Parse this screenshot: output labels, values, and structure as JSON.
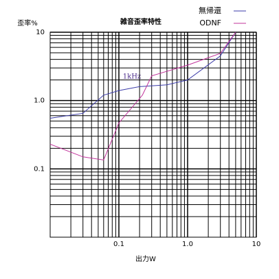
{
  "chart_data": {
    "type": "line",
    "title": "雑音歪率特性",
    "ylabel": "歪率%",
    "xlabel": "出力W",
    "annotation": "1kHz",
    "log_x": true,
    "log_y": true,
    "grid": true,
    "legend": "top-right",
    "xlim": [
      0.01,
      10
    ],
    "ylim": [
      0.01,
      10
    ],
    "xticks": [
      0.1,
      {
        "value": 1,
        "label": "1.0"
      },
      10
    ],
    "yticks": [
      0.1,
      {
        "value": 1,
        "label": "1.0"
      },
      10
    ],
    "xgrid_minor": [
      0.02,
      0.03,
      0.04,
      0.05,
      0.06,
      0.07,
      0.08,
      0.09,
      0.2,
      0.3,
      0.4,
      0.5,
      0.6,
      0.7,
      0.8,
      0.9,
      2,
      3,
      4,
      5,
      6,
      7,
      8,
      9
    ],
    "ygrid_minor": [
      0.02,
      0.03,
      0.04,
      0.05,
      0.06,
      0.07,
      0.08,
      0.09,
      0.2,
      0.3,
      0.4,
      0.5,
      0.6,
      0.7,
      0.8,
      0.9,
      2,
      3,
      4,
      5,
      6,
      7,
      8,
      9
    ],
    "series": [
      {
        "name": "無帰還",
        "color": "#3a3aa8",
        "x": [
          0.01,
          0.03,
          0.06,
          0.1,
          0.2,
          0.5,
          1,
          3,
          5
        ],
        "values": [
          0.55,
          0.65,
          1.2,
          1.4,
          1.6,
          1.7,
          2.0,
          4.5,
          10
        ]
      },
      {
        "name": "ODNF",
        "color": "#c0309a",
        "x": [
          0.01,
          0.03,
          0.06,
          0.1,
          0.22,
          0.3,
          1,
          3,
          5
        ],
        "values": [
          0.23,
          0.15,
          0.135,
          0.47,
          1.2,
          2.3,
          3.3,
          4.9,
          10
        ]
      }
    ]
  }
}
